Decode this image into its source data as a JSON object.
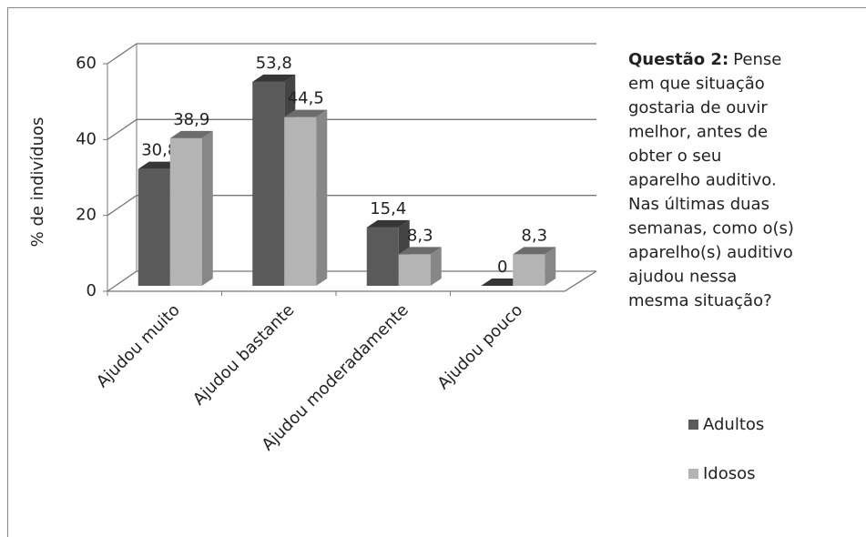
{
  "chart_data": {
    "type": "bar3d",
    "y_label": "% de indivíduos",
    "categories": [
      "Ajudou muito",
      "Ajudou bastante",
      "Ajudou moderadamente",
      "Ajudou pouco"
    ],
    "series": [
      {
        "name": "Adultos",
        "color": "#5a5a5a",
        "values": [
          30.8,
          53.8,
          15.4,
          0
        ],
        "value_labels": [
          "30,8",
          "53,8",
          "15,4",
          "0"
        ]
      },
      {
        "name": "Idosos",
        "color": "#b4b4b4",
        "values": [
          38.9,
          44.5,
          8.3,
          8.3
        ],
        "value_labels": [
          "38,9",
          "44,5",
          "8,3",
          "8,3"
        ]
      }
    ],
    "ylim": [
      0,
      60
    ],
    "yticks": [
      0,
      20,
      40,
      60
    ],
    "grid": true,
    "legend": "right",
    "annotation": {
      "title": "Questão 2:",
      "lines": [
        "Pense",
        "em que situação",
        "gostaria de ouvir",
        "melhor, antes de",
        "obter o seu",
        "aparelho auditivo.",
        "Nas últimas duas",
        "semanas, como o(s)",
        "aparelho(s) auditivo",
        "ajudou nessa",
        "mesma situação?"
      ]
    }
  }
}
